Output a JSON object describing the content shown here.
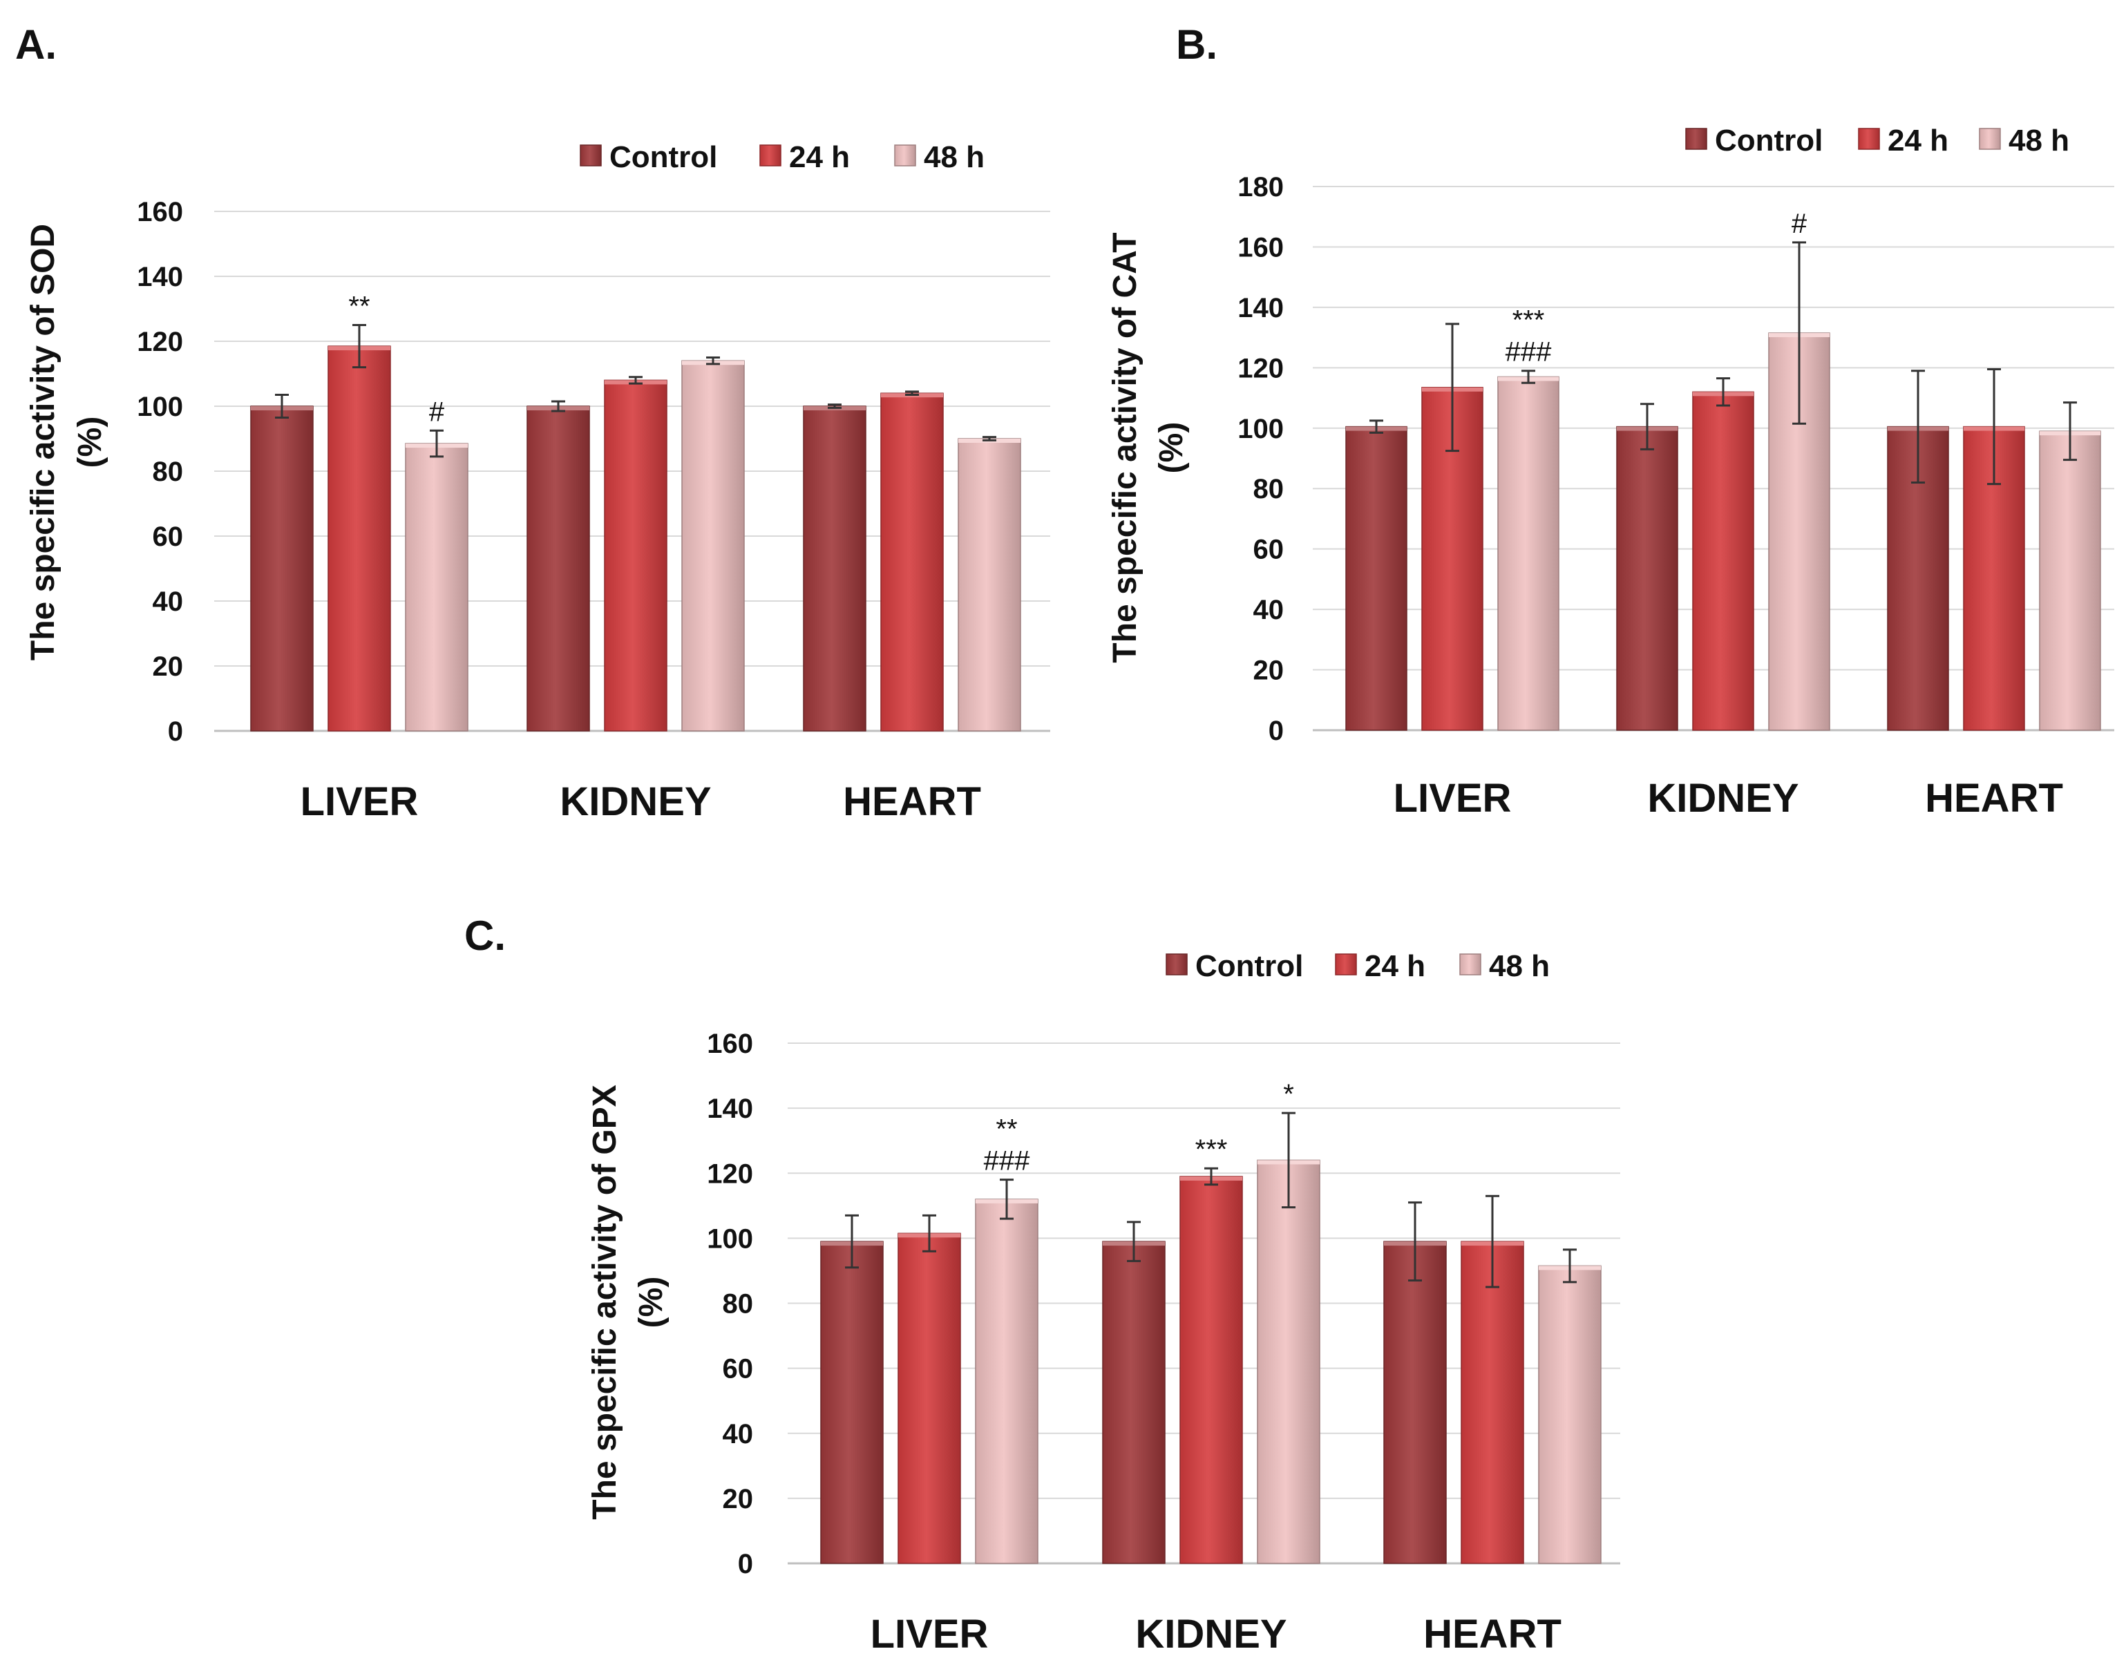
{
  "colors": {
    "control": "#a0393b",
    "h24": "#d63c3f",
    "h48": "#f1c2c2"
  },
  "chart_data": [
    {
      "type": "bar",
      "panel": "A.",
      "ylabel": "The specific activity of SOD",
      "ylabel_unit": "(%)",
      "categories": [
        "LIVER",
        "KIDNEY",
        "HEART"
      ],
      "legend": [
        "Control",
        "24 h",
        "48 h"
      ],
      "ylim": [
        0,
        160
      ],
      "yticks": [
        0,
        20,
        40,
        60,
        80,
        100,
        120,
        140,
        160
      ],
      "series": [
        {
          "name": "Control",
          "values": [
            100,
            100,
            100
          ],
          "errors": [
            3.5,
            1.5,
            0.5
          ]
        },
        {
          "name": "24 h",
          "values": [
            118.5,
            108,
            104
          ],
          "errors": [
            6.5,
            1,
            0.5
          ]
        },
        {
          "name": "48 h",
          "values": [
            88.5,
            114,
            90
          ],
          "errors": [
            4,
            1,
            0.5
          ]
        }
      ],
      "annotations": [
        {
          "series": 1,
          "category": 0,
          "lines": [
            "**"
          ]
        },
        {
          "series": 2,
          "category": 0,
          "lines": [
            "#"
          ]
        }
      ]
    },
    {
      "type": "bar",
      "panel": "B.",
      "ylabel": "The specific activity of CAT",
      "ylabel_unit": "(%)",
      "categories": [
        "LIVER",
        "KIDNEY",
        "HEART"
      ],
      "legend": [
        "Control",
        "24 h",
        "48 h"
      ],
      "ylim": [
        0,
        180
      ],
      "yticks": [
        0,
        20,
        40,
        60,
        80,
        100,
        120,
        140,
        160,
        180
      ],
      "series": [
        {
          "name": "Control",
          "values": [
            100.5,
            100.5,
            100.5
          ],
          "errors": [
            2,
            7.5,
            18.5
          ]
        },
        {
          "name": "24 h",
          "values": [
            113.5,
            112,
            100.5
          ],
          "errors": [
            21,
            4.5,
            19
          ]
        },
        {
          "name": "48 h",
          "values": [
            117,
            131.5,
            99
          ],
          "errors": [
            2,
            30,
            9.5
          ]
        }
      ],
      "annotations": [
        {
          "series": 2,
          "category": 0,
          "lines": [
            "***",
            "###"
          ]
        },
        {
          "series": 2,
          "category": 1,
          "lines": [
            "#"
          ]
        }
      ]
    },
    {
      "type": "bar",
      "panel": "C.",
      "ylabel": "The specific activity of GPX",
      "ylabel_unit": "(%)",
      "categories": [
        "LIVER",
        "KIDNEY",
        "HEART"
      ],
      "legend": [
        "Control",
        "24 h",
        "48 h"
      ],
      "ylim": [
        0,
        160
      ],
      "yticks": [
        0,
        20,
        40,
        60,
        80,
        100,
        120,
        140,
        160
      ],
      "series": [
        {
          "name": "Control",
          "values": [
            99,
            99,
            99
          ],
          "errors": [
            8,
            6,
            12
          ]
        },
        {
          "name": "24 h",
          "values": [
            101.5,
            119,
            99
          ],
          "errors": [
            5.5,
            2.5,
            14
          ]
        },
        {
          "name": "48 h",
          "values": [
            112,
            124,
            91.5
          ],
          "errors": [
            6,
            14.5,
            5
          ]
        }
      ],
      "annotations": [
        {
          "series": 2,
          "category": 0,
          "lines": [
            "**",
            "###"
          ]
        },
        {
          "series": 1,
          "category": 1,
          "lines": [
            "***"
          ]
        },
        {
          "series": 2,
          "category": 1,
          "lines": [
            "*"
          ]
        }
      ]
    }
  ]
}
